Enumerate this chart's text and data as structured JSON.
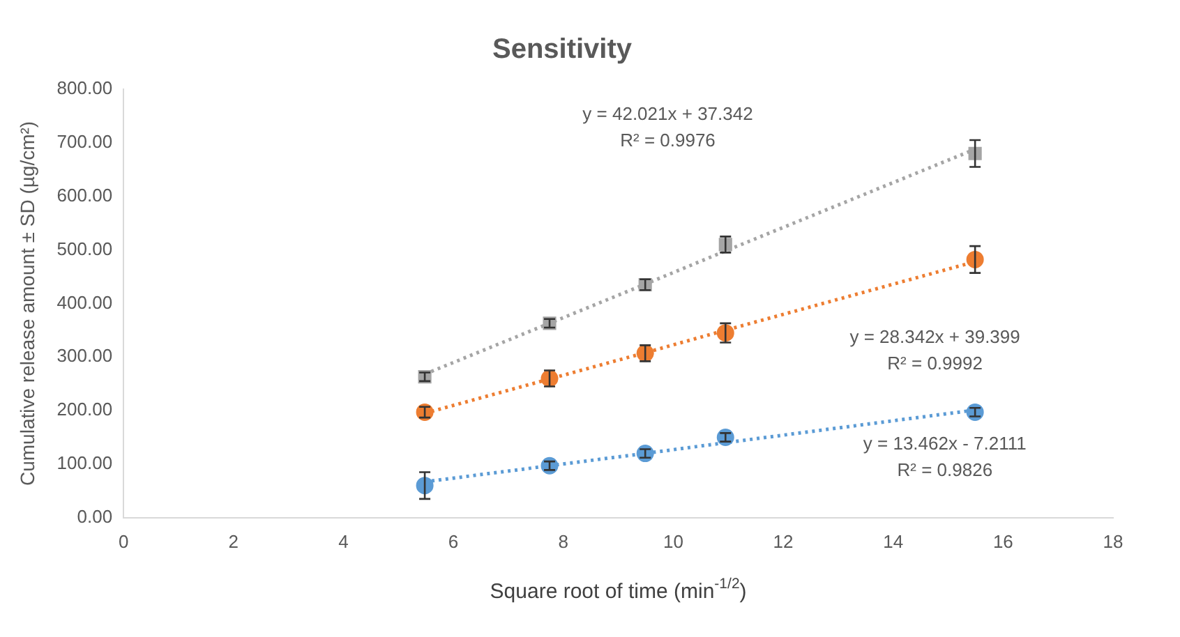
{
  "chart_data": {
    "type": "scatter",
    "title": "Sensitivity",
    "xlabel": "Square root of time (min$^{-1/2}$)",
    "ylabel": "Cumulative release amount ± SD (µg/cm²)",
    "x": [
      5.48,
      7.75,
      9.49,
      10.95,
      15.49
    ],
    "series": [
      {
        "type": "scatter",
        "color": "#5b9bd5",
        "marker": "circle",
        "values": [
          60,
          97,
          120,
          150,
          197
        ],
        "errors": [
          25,
          8,
          8,
          8,
          8
        ]
      },
      {
        "type": "scatter",
        "color": "#ed7d31",
        "marker": "circle",
        "values": [
          197,
          260,
          307,
          345,
          482
        ],
        "errors": [
          10,
          15,
          15,
          18,
          25
        ]
      },
      {
        "type": "scatter",
        "color": "#a5a5a5",
        "marker": "square",
        "values": [
          263,
          363,
          435,
          510,
          680
        ],
        "errors": [
          8,
          8,
          10,
          15,
          25
        ]
      },
      {
        "type": "line",
        "color": "#5b9bd5",
        "line_style": "dotted",
        "values": [
          67,
          97,
          120,
          140,
          201
        ]
      },
      {
        "type": "line",
        "color": "#ed7d31",
        "line_style": "dotted",
        "values": [
          195,
          259,
          308,
          350,
          478
        ]
      },
      {
        "type": "line",
        "color": "#a5a5a5",
        "line_style": "dotted",
        "values": [
          268,
          363,
          436,
          498,
          688
        ]
      }
    ],
    "annotations": [
      "y = 13.462x - 7.2111",
      "R² = 0.9826",
      "y = 28.342x + 39.399",
      "R² = 0.9992",
      "y = 42.021x + 37.342",
      "R² = 0.9976"
    ],
    "xlim": [
      0,
      18
    ],
    "xticks": [
      0,
      2,
      4,
      6,
      8,
      10,
      12,
      14,
      16,
      18
    ],
    "ylim": [
      0,
      800
    ],
    "yticks": [
      {
        "value": 0,
        "label": "0.00"
      },
      {
        "value": 100,
        "label": "100.00"
      },
      {
        "value": 200,
        "label": "200.00"
      },
      {
        "value": 300,
        "label": "300.00"
      },
      {
        "value": 400,
        "label": "400.00"
      },
      {
        "value": 500,
        "label": "500.00"
      },
      {
        "value": 600,
        "label": "600.00"
      },
      {
        "value": 700,
        "label": "700.00"
      },
      {
        "value": 800,
        "label": "800.00"
      }
    ],
    "grid": false,
    "legend": false
  }
}
